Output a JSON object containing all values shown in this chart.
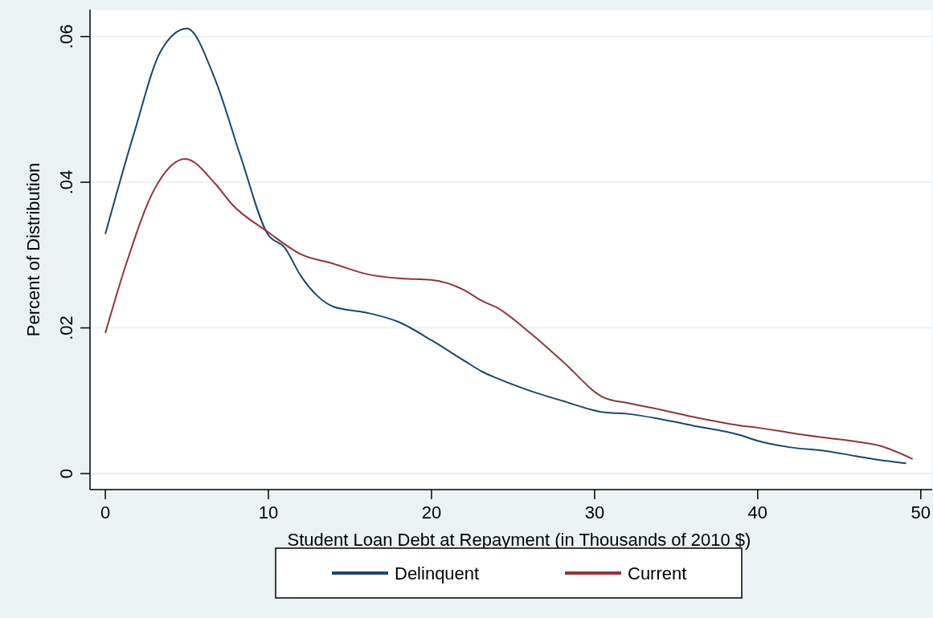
{
  "chart_data": {
    "type": "line",
    "xlabel": "Student Loan Debt at Repayment (in Thousands of 2010 $)",
    "ylabel": "Percent of Distribution",
    "xlim": [
      -0.94,
      50.7
    ],
    "xticks": [
      0,
      10,
      20,
      30,
      40,
      50
    ],
    "ylim": [
      -0.0022,
      0.0637
    ],
    "yticks": [
      {
        "value": 0,
        "label": "0"
      },
      {
        "value": 0.02,
        "label": ".02"
      },
      {
        "value": 0.04,
        "label": ".04"
      },
      {
        "value": 0.06,
        "label": ".06"
      }
    ],
    "grid": "y",
    "legend": "bottom",
    "marker": "none",
    "line_style": "solid",
    "series": [
      {
        "name": "Delinquent",
        "color": "#1a476f",
        "x": [
          0,
          1.77,
          3.4,
          5,
          6.7,
          8.3,
          9.95,
          11,
          12,
          13,
          14,
          16,
          18,
          20,
          22,
          23.1,
          24,
          26,
          28,
          30.6,
          32,
          34,
          36,
          38.9,
          40,
          42,
          44.2,
          46,
          48,
          49.1
        ],
        "values": [
          0.0329,
          0.0468,
          0.058,
          0.0611,
          0.0543,
          0.0435,
          0.0329,
          0.031,
          0.0271,
          0.0244,
          0.0229,
          0.0221,
          0.0208,
          0.0183,
          0.0155,
          0.014,
          0.0131,
          0.0114,
          0.01,
          0.0084,
          0.0082,
          0.0075,
          0.0066,
          0.0053,
          0.0045,
          0.0036,
          0.0031,
          0.0024,
          0.0017,
          0.0014
        ]
      },
      {
        "name": "Current",
        "color": "#90353b",
        "x": [
          0,
          1.28,
          3,
          4.9,
          6.7,
          7.8,
          9.95,
          12,
          14,
          16,
          18,
          20,
          22,
          23.1,
          24,
          26,
          28,
          30.6,
          32,
          34,
          36,
          38.9,
          40,
          42,
          44.2,
          46,
          47.5,
          49.5
        ],
        "values": [
          0.0193,
          0.0288,
          0.039,
          0.0432,
          0.0399,
          0.0369,
          0.0332,
          0.0301,
          0.0288,
          0.0274,
          0.0268,
          0.0266,
          0.0252,
          0.0237,
          0.0228,
          0.0194,
          0.0155,
          0.0104,
          0.0097,
          0.0088,
          0.0078,
          0.0066,
          0.0063,
          0.0056,
          0.0049,
          0.0044,
          0.0038,
          0.002
        ]
      }
    ]
  }
}
